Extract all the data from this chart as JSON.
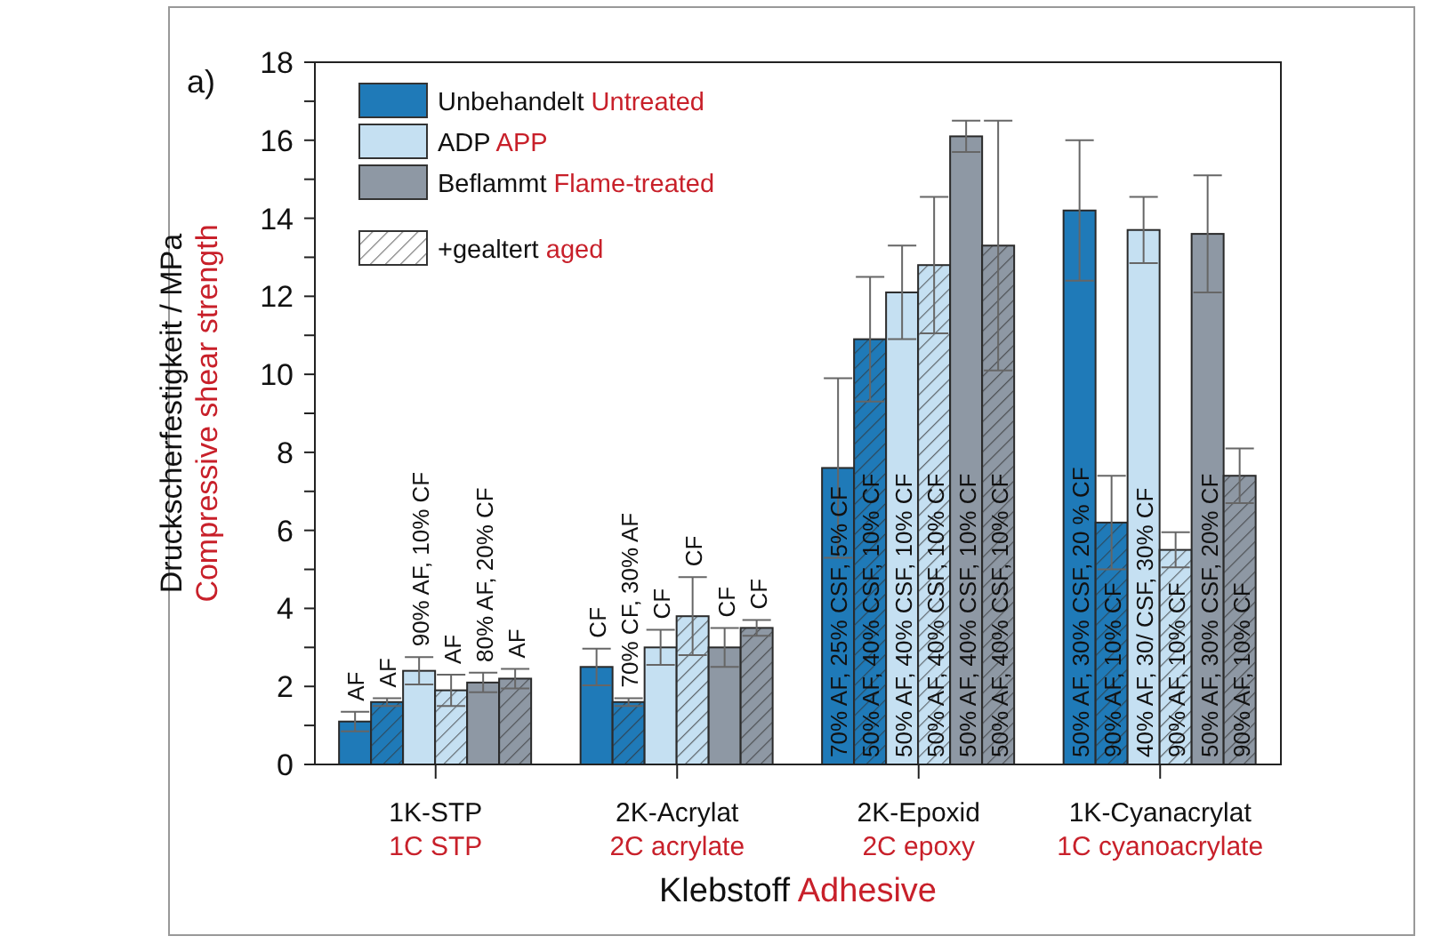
{
  "chart_data": {
    "type": "bar",
    "categories": [
      "1K-STP\n1C STP",
      "2K-Acrylat\n2C acrylate",
      "2K-Epoxid\n2C epoxy",
      "1K-Cyanacrylat\n1C cyanoacrylate"
    ],
    "xlabel": "Klebstoff\nAdhesive",
    "ylabel": "Druckscherfestigkeit / MPa\nCompressive shear strength",
    "annotations": [
      "a)",
      "+gealtert\naged",
      "AF",
      "AF",
      "90% AF, 10% CF",
      "AF",
      "80% AF, 20% CF",
      "AF",
      "CF",
      "70% CF, 30% AF",
      "CF",
      "CF",
      "CF",
      "CF",
      "70% AF, 25% CSF, 5% CF",
      "50% AF, 40% CSF, 10% CF",
      "50% AF, 40% CSF, 10% CF",
      "50% AF, 40% CSF, 10% CF",
      "50% AF, 40% CSF, 10% CF",
      "50% AF, 40% CSF, 10% CF",
      "50% AF, 30% CSF, 20 % CF",
      "90% AF, 10% CF",
      "40% AF, 30/ CSF, 30% CF",
      "90% AF, 10% CF",
      "50% AF, 30% CSF, 20% CF",
      "90% AF, 10% CF"
    ],
    "ylim": [
      0,
      18
    ],
    "yticks": [
      0,
      {
        "value": 1,
        "label": null
      },
      2,
      {
        "value": 3,
        "label": null
      },
      4,
      {
        "value": 5,
        "label": null
      },
      6,
      {
        "value": 7,
        "label": null
      },
      8,
      {
        "value": 9,
        "label": null
      },
      10,
      {
        "value": 11,
        "label": null
      },
      12,
      {
        "value": 13,
        "label": null
      },
      14,
      {
        "value": 15,
        "label": null
      },
      16,
      {
        "value": 17,
        "label": null
      },
      18
    ],
    "legend": "top left",
    "series": [
      {
        "name": "Unbehandelt\nUntreated",
        "color": "#1f7ab8",
        "values": [
          1.1,
          2.5,
          7.6,
          14.2
        ],
        "errors": [
          0.25,
          0.47,
          2.3,
          1.8
        ]
      },
      {
        "color": "#1f7ab8",
        "values": [
          1.6,
          1.6,
          10.9,
          6.2
        ],
        "errors": [
          0.1,
          0.1,
          1.6,
          1.2
        ]
      },
      {
        "name": "ADP\nAPP",
        "color": "#c5e0f2",
        "values": [
          2.4,
          3.0,
          12.1,
          13.7
        ],
        "errors": [
          0.35,
          0.45,
          1.2,
          0.85
        ]
      },
      {
        "color": "#c5e0f2",
        "values": [
          1.9,
          3.8,
          12.8,
          5.5
        ],
        "errors": [
          0.4,
          1.0,
          1.75,
          0.45
        ]
      },
      {
        "name": "Beflammt\nFlame-treated",
        "color": "#8e98a4",
        "values": [
          2.1,
          3.0,
          16.1,
          13.6
        ],
        "errors": [
          0.25,
          0.5,
          0.4,
          1.5
        ]
      },
      {
        "color": "#8e98a4",
        "values": [
          2.2,
          3.5,
          13.3,
          7.4
        ],
        "errors": [
          0.25,
          0.2,
          3.2,
          0.7
        ]
      }
    ]
  }
}
